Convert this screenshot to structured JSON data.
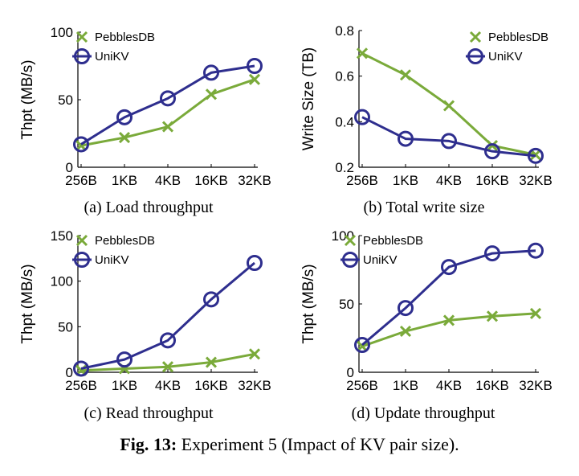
{
  "figure_caption": {
    "label": "Fig. 13:",
    "text": "Experiment 5 (Impact of KV pair size)."
  },
  "colors": {
    "pebblesdb": "#7aaa3a",
    "unikv": "#2e2e8e"
  },
  "chart_data": [
    {
      "type": "line",
      "caption": "(a)  Load throughput",
      "ylabel": "Thpt (MB/s)",
      "categories": [
        "256B",
        "1KB",
        "4KB",
        "16KB",
        "32KB"
      ],
      "ylim": [
        0,
        100
      ],
      "yticks": [
        "0",
        "50",
        "100"
      ],
      "ytick_values": [
        0,
        50,
        100
      ],
      "legend_position": "top-left",
      "series": [
        {
          "name": "PebblesDB",
          "marker": "x",
          "values": [
            16,
            22,
            30,
            54,
            65
          ]
        },
        {
          "name": "UniKV",
          "marker": "o",
          "values": [
            17,
            37,
            51,
            70,
            75
          ]
        }
      ]
    },
    {
      "type": "line",
      "caption": "(b)  Total write size",
      "ylabel": "Write Size (TB)",
      "categories": [
        "256B",
        "1KB",
        "4KB",
        "16KB",
        "32KB"
      ],
      "ylim": [
        0.2,
        0.8
      ],
      "yticks": [
        "0.2",
        "0.4",
        "0.6",
        "0.8"
      ],
      "ytick_values": [
        0.2,
        0.4,
        0.6,
        0.8
      ],
      "legend_position": "top-right",
      "series": [
        {
          "name": "PebblesDB",
          "marker": "x",
          "values": [
            0.7,
            0.605,
            0.47,
            0.295,
            0.255
          ]
        },
        {
          "name": "UniKV",
          "marker": "o",
          "values": [
            0.42,
            0.325,
            0.315,
            0.27,
            0.25
          ]
        }
      ]
    },
    {
      "type": "line",
      "caption": "(c)  Read throughput",
      "ylabel": "Thpt (MB/s)",
      "categories": [
        "256B",
        "1KB",
        "4KB",
        "16KB",
        "32KB"
      ],
      "ylim": [
        0,
        150
      ],
      "yticks": [
        "0",
        "50",
        "100",
        "150"
      ],
      "ytick_values": [
        0,
        50,
        100,
        150
      ],
      "legend_position": "top-left",
      "series": [
        {
          "name": "PebblesDB",
          "marker": "x",
          "values": [
            2,
            4,
            6,
            11,
            20
          ]
        },
        {
          "name": "UniKV",
          "marker": "o",
          "values": [
            4,
            14,
            35,
            80,
            120
          ]
        }
      ]
    },
    {
      "type": "line",
      "caption": "(d)  Update throughput",
      "ylabel": "Thpt (MB/s)",
      "categories": [
        "256B",
        "1KB",
        "4KB",
        "16KB",
        "32KB"
      ],
      "ylim": [
        0,
        100
      ],
      "yticks": [
        "0",
        "50",
        "100"
      ],
      "ytick_values": [
        0,
        50,
        100
      ],
      "legend_position": "top-left",
      "series": [
        {
          "name": "PebblesDB",
          "marker": "x",
          "values": [
            19,
            30,
            38,
            41,
            43
          ]
        },
        {
          "name": "UniKV",
          "marker": "o",
          "values": [
            20,
            47,
            77,
            87,
            89
          ]
        }
      ]
    }
  ]
}
